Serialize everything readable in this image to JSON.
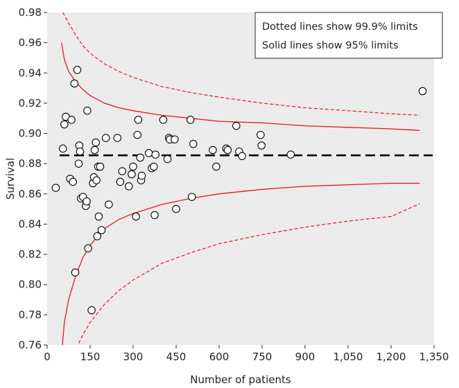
{
  "chart_data": {
    "type": "scatter",
    "title": "",
    "xlabel": "Number of patients",
    "ylabel": "Survival",
    "xlim": [
      0,
      1350
    ],
    "ylim": [
      0.76,
      0.98
    ],
    "x_ticks": [
      0,
      150,
      300,
      450,
      600,
      750,
      900,
      1050,
      1200,
      1350
    ],
    "x_tick_labels": [
      "0",
      "150",
      "300",
      "450",
      "600",
      "750",
      "900",
      "1,050",
      "1,200",
      "1,350"
    ],
    "y_ticks": [
      0.76,
      0.78,
      0.8,
      0.82,
      0.84,
      0.86,
      0.88,
      0.9,
      0.92,
      0.94,
      0.96,
      0.98
    ],
    "y_tick_labels": [
      "0.76",
      "0.78",
      "0.80",
      "0.82",
      "0.84",
      "0.86",
      "0.88",
      "0.90",
      "0.92",
      "0.94",
      "0.96",
      "0.98"
    ],
    "grid": false,
    "background_color": "#ebebeb",
    "legend_position": "top-right",
    "legend_lines": [
      "Dotted lines show 99.9% limits",
      "Solid lines show 95% limits"
    ],
    "mean_line": {
      "value": 0.8855,
      "style": "dashed",
      "color": "#000000"
    },
    "limit_colors": {
      "limit_95": "#e8141e",
      "limit_999": "#e8141e"
    },
    "limits_95": {
      "x": [
        50,
        60,
        75,
        100,
        125,
        150,
        200,
        250,
        300,
        400,
        500,
        600,
        750,
        900,
        1050,
        1200,
        1300
      ],
      "upper": [
        0.96,
        0.949,
        0.941,
        0.934,
        0.929,
        0.925,
        0.92,
        0.917,
        0.915,
        0.912,
        0.91,
        0.908,
        0.907,
        0.905,
        0.904,
        0.903,
        0.902
      ],
      "lower": [
        0.753,
        0.775,
        0.79,
        0.806,
        0.818,
        0.826,
        0.837,
        0.843,
        0.847,
        0.853,
        0.857,
        0.86,
        0.863,
        0.865,
        0.866,
        0.867,
        0.867
      ]
    },
    "limits_999": {
      "x": [
        55,
        75,
        100,
        125,
        150,
        200,
        250,
        300,
        400,
        500,
        600,
        750,
        900,
        1050,
        1200,
        1300
      ],
      "upper": [
        0.98,
        0.973,
        0.965,
        0.958,
        0.953,
        0.946,
        0.941,
        0.937,
        0.931,
        0.927,
        0.924,
        0.92,
        0.917,
        0.915,
        0.913,
        0.912
      ],
      "lower": [
        0.73,
        0.745,
        0.757,
        0.767,
        0.775,
        0.787,
        0.796,
        0.803,
        0.814,
        0.821,
        0.827,
        0.833,
        0.838,
        0.842,
        0.845,
        0.8535
      ]
    },
    "series": [
      {
        "marker": "open-circle",
        "points": [
          [
            30,
            0.864
          ],
          [
            55,
            0.89
          ],
          [
            60,
            0.906
          ],
          [
            65,
            0.911
          ],
          [
            80,
            0.87
          ],
          [
            85,
            0.909
          ],
          [
            90,
            0.868
          ],
          [
            95,
            0.933
          ],
          [
            98,
            0.808
          ],
          [
            105,
            0.942
          ],
          [
            110,
            0.88
          ],
          [
            112,
            0.892
          ],
          [
            115,
            0.888
          ],
          [
            118,
            0.857
          ],
          [
            125,
            0.858
          ],
          [
            135,
            0.852
          ],
          [
            138,
            0.855
          ],
          [
            140,
            0.915
          ],
          [
            143,
            0.824
          ],
          [
            155,
            0.783
          ],
          [
            160,
            0.867
          ],
          [
            163,
            0.871
          ],
          [
            166,
            0.889
          ],
          [
            170,
            0.894
          ],
          [
            172,
            0.869
          ],
          [
            175,
            0.832
          ],
          [
            178,
            0.878
          ],
          [
            180,
            0.845
          ],
          [
            185,
            0.878
          ],
          [
            190,
            0.836
          ],
          [
            205,
            0.897
          ],
          [
            215,
            0.853
          ],
          [
            245,
            0.897
          ],
          [
            255,
            0.868
          ],
          [
            262,
            0.875
          ],
          [
            285,
            0.865
          ],
          [
            295,
            0.873
          ],
          [
            300,
            0.878
          ],
          [
            310,
            0.845
          ],
          [
            315,
            0.899
          ],
          [
            318,
            0.909
          ],
          [
            325,
            0.884
          ],
          [
            328,
            0.869
          ],
          [
            330,
            0.872
          ],
          [
            355,
            0.887
          ],
          [
            365,
            0.877
          ],
          [
            372,
            0.878
          ],
          [
            375,
            0.846
          ],
          [
            378,
            0.886
          ],
          [
            405,
            0.909
          ],
          [
            420,
            0.883
          ],
          [
            425,
            0.897
          ],
          [
            428,
            0.896
          ],
          [
            445,
            0.896
          ],
          [
            450,
            0.85
          ],
          [
            500,
            0.909
          ],
          [
            505,
            0.858
          ],
          [
            510,
            0.893
          ],
          [
            578,
            0.889
          ],
          [
            590,
            0.878
          ],
          [
            625,
            0.89
          ],
          [
            630,
            0.889
          ],
          [
            660,
            0.905
          ],
          [
            670,
            0.888
          ],
          [
            680,
            0.885
          ],
          [
            745,
            0.899
          ],
          [
            748,
            0.892
          ],
          [
            850,
            0.886
          ],
          [
            1310,
            0.928
          ]
        ]
      }
    ]
  }
}
